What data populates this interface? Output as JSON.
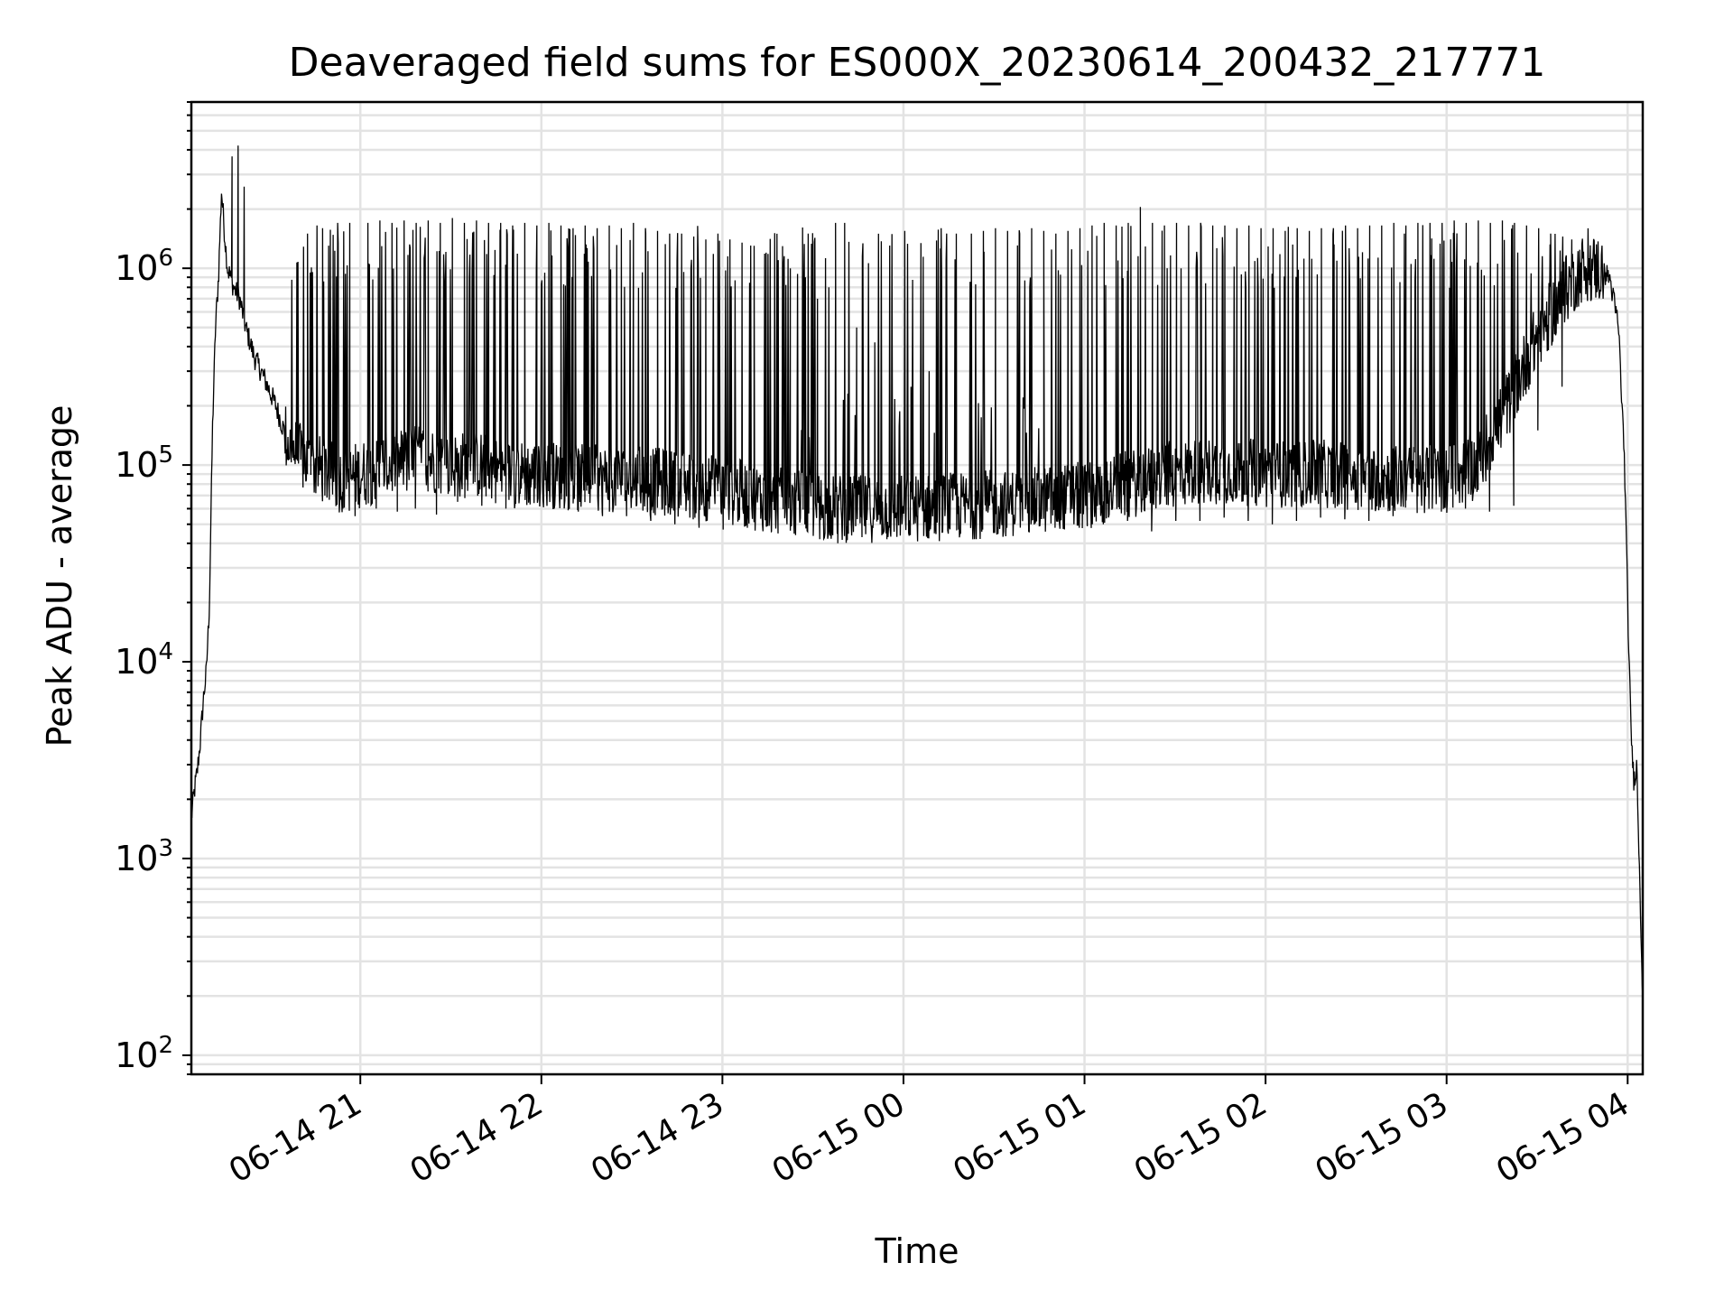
{
  "chart_data": {
    "type": "line",
    "title": "Deaveraged field sums for ES000X_20230614_200432_217771",
    "xlabel": "Time",
    "ylabel": "Peak ADU - average",
    "xlim": [
      "2023-06-14 20:04",
      "2023-06-15 04:05"
    ],
    "ylim": [
      80,
      7000000
    ],
    "yscale": "log",
    "grid": true,
    "x_ticks": [
      "06-14 21",
      "06-14 22",
      "06-14 23",
      "06-15 00",
      "06-15 01",
      "06-15 02",
      "06-15 03",
      "06-15 04"
    ],
    "y_ticks": [
      {
        "value": 100,
        "base": "10",
        "exp": "2"
      },
      {
        "value": 1000,
        "base": "10",
        "exp": "3"
      },
      {
        "value": 10000,
        "base": "10",
        "exp": "4"
      },
      {
        "value": 100000,
        "base": "10",
        "exp": "5"
      },
      {
        "value": 1000000,
        "base": "10",
        "exp": "6"
      }
    ],
    "line_color": "#000000",
    "series": [
      {
        "x": [
          "2023-06-14 20:04",
          "2023-06-14 20:05",
          "2023-06-14 20:06",
          "2023-06-14 20:07",
          "2023-06-14 20:08",
          "2023-06-14 20:09",
          "2023-06-14 20:10",
          "2023-06-14 20:11",
          "2023-06-14 20:12",
          "2023-06-14 20:13",
          "2023-06-14 20:14",
          "2023-06-14 20:15",
          "2023-06-14 20:16",
          "2023-06-14 20:17",
          "2023-06-14 20:18",
          "2023-06-14 20:20",
          "2023-06-14 20:22",
          "2023-06-14 20:25",
          "2023-06-14 20:28",
          "2023-06-14 20:32",
          "2023-06-14 20:36",
          "2023-06-14 20:40",
          "2023-06-14 20:44",
          "2023-06-14 20:47",
          "2023-06-14 20:50",
          "2023-06-14 20:53",
          "2023-06-14 20:56",
          "2023-06-14 21:00",
          "2023-06-14 21:10",
          "2023-06-14 21:20",
          "2023-06-14 21:30",
          "2023-06-14 21:40",
          "2023-06-14 21:50",
          "2023-06-14 22:00",
          "2023-06-14 22:15",
          "2023-06-14 22:30",
          "2023-06-14 22:45",
          "2023-06-14 23:00",
          "2023-06-14 23:20",
          "2023-06-14 23:40",
          "2023-06-15 00:00",
          "2023-06-15 00:20",
          "2023-06-15 00:40",
          "2023-06-15 01:00",
          "2023-06-15 01:15",
          "2023-06-15 01:30",
          "2023-06-15 01:45",
          "2023-06-15 02:00",
          "2023-06-15 02:20",
          "2023-06-15 02:40",
          "2023-06-15 03:00",
          "2023-06-15 03:10",
          "2023-06-15 03:20",
          "2023-06-15 03:30",
          "2023-06-15 03:40",
          "2023-06-15 03:45",
          "2023-06-15 03:50",
          "2023-06-15 03:54",
          "2023-06-15 03:57",
          "2023-06-15 03:59",
          "2023-06-15 04:00",
          "2023-06-15 04:01",
          "2023-06-15 04:02",
          "2023-06-15 04:03",
          "2023-06-15 04:04",
          "2023-06-15 04:05"
        ],
        "y": [
          1600,
          2200,
          2800,
          4000,
          6500,
          9000,
          20000,
          150000,
          500000,
          900000,
          2500000,
          1500000,
          1000000,
          900000,
          800000,
          700000,
          500000,
          350000,
          280000,
          200000,
          130000,
          110000,
          100000,
          95000,
          90000,
          85000,
          85000,
          90000,
          100000,
          110000,
          100000,
          100000,
          90000,
          90000,
          85000,
          85000,
          80000,
          75000,
          65000,
          60000,
          60000,
          62000,
          65000,
          70000,
          80000,
          90000,
          95000,
          90000,
          90000,
          85000,
          85000,
          100000,
          200000,
          450000,
          800000,
          1000000,
          1000000,
          900000,
          500000,
          100000,
          20000,
          5000,
          2500,
          3000,
          800,
          200
        ],
        "spikes": [
          [
            "2023-06-14 20:17",
            3700000
          ],
          [
            "2023-06-14 20:19",
            4200000
          ],
          [
            "2023-06-14 20:21",
            2600000
          ],
          [
            "2023-06-14 20:42",
            1500000
          ],
          [
            "2023-06-14 20:47",
            1600000
          ],
          [
            "2023-06-14 20:52",
            1700000
          ],
          [
            "2023-06-14 20:56",
            1700000
          ],
          [
            "2023-06-14 21:02",
            1700000
          ],
          [
            "2023-06-14 21:06",
            1750000
          ],
          [
            "2023-06-14 21:10",
            1700000
          ],
          [
            "2023-06-14 21:14",
            1750000
          ],
          [
            "2023-06-14 21:18",
            1700000
          ],
          [
            "2023-06-14 21:22",
            1750000
          ],
          [
            "2023-06-14 21:26",
            1700000
          ],
          [
            "2023-06-14 21:30",
            1800000
          ],
          [
            "2023-06-14 21:34",
            1700000
          ],
          [
            "2023-06-14 21:38",
            1750000
          ],
          [
            "2023-06-14 21:42",
            1700000
          ],
          [
            "2023-06-14 21:46",
            1700000
          ],
          [
            "2023-06-14 21:50",
            1650000
          ],
          [
            "2023-06-14 21:54",
            1700000
          ],
          [
            "2023-06-14 21:58",
            1650000
          ],
          [
            "2023-06-14 22:02",
            1700000
          ],
          [
            "2023-06-14 22:06",
            1650000
          ],
          [
            "2023-06-14 22:10",
            1600000
          ],
          [
            "2023-06-14 22:14",
            1650000
          ],
          [
            "2023-06-14 22:18",
            1600000
          ],
          [
            "2023-06-14 22:22",
            1650000
          ],
          [
            "2023-06-14 22:26",
            1600000
          ],
          [
            "2023-06-14 22:30",
            1700000
          ],
          [
            "2023-06-14 22:34",
            1600000
          ],
          [
            "2023-06-14 22:38",
            1550000
          ],
          [
            "2023-06-14 22:42",
            1500000
          ],
          [
            "2023-06-14 22:46",
            1500000
          ],
          [
            "2023-06-14 22:50",
            1450000
          ],
          [
            "2023-06-14 22:54",
            1400000
          ],
          [
            "2023-06-14 22:58",
            1500000
          ],
          [
            "2023-06-14 23:02",
            1400000
          ],
          [
            "2023-06-14 23:06",
            1350000
          ],
          [
            "2023-06-14 23:10",
            1300000
          ],
          [
            "2023-06-14 23:14",
            1200000
          ],
          [
            "2023-06-14 23:18",
            1100000
          ],
          [
            "2023-06-14 23:22",
            1000000
          ],
          [
            "2023-06-14 23:27",
            900000
          ],
          [
            "2023-06-14 23:31",
            700000
          ],
          [
            "2023-06-14 23:37",
            1700000
          ],
          [
            "2023-06-14 23:40",
            1700000
          ],
          [
            "2023-06-14 23:44",
            500000
          ],
          [
            "2023-06-14 23:50",
            420000
          ],
          [
            "2023-06-14 23:55",
            300000
          ],
          [
            "2023-06-15 00:02",
            250000
          ],
          [
            "2023-06-15 00:08",
            300000
          ],
          [
            "2023-06-15 00:12",
            1600000
          ],
          [
            "2023-06-15 00:17",
            1500000
          ],
          [
            "2023-06-15 00:22",
            1500000
          ],
          [
            "2023-06-15 00:26",
            1550000
          ],
          [
            "2023-06-15 00:30",
            1600000
          ],
          [
            "2023-06-15 00:34",
            1550000
          ],
          [
            "2023-06-15 00:38",
            1500000
          ],
          [
            "2023-06-15 00:42",
            1600000
          ],
          [
            "2023-06-15 00:46",
            1550000
          ],
          [
            "2023-06-15 00:50",
            1500000
          ],
          [
            "2023-06-15 00:54",
            1550000
          ],
          [
            "2023-06-15 00:58",
            1600000
          ],
          [
            "2023-06-15 01:02",
            1650000
          ],
          [
            "2023-06-15 01:06",
            1700000
          ],
          [
            "2023-06-15 01:10",
            1650000
          ],
          [
            "2023-06-15 01:14",
            1700000
          ],
          [
            "2023-06-15 01:18",
            2050000
          ],
          [
            "2023-06-15 01:22",
            1700000
          ],
          [
            "2023-06-15 01:26",
            1650000
          ],
          [
            "2023-06-15 01:30",
            1700000
          ],
          [
            "2023-06-15 01:34",
            1650000
          ],
          [
            "2023-06-15 01:38",
            1700000
          ],
          [
            "2023-06-15 01:42",
            1650000
          ],
          [
            "2023-06-15 01:46",
            1650000
          ],
          [
            "2023-06-15 01:50",
            1600000
          ],
          [
            "2023-06-15 01:54",
            1650000
          ],
          [
            "2023-06-15 01:58",
            1600000
          ],
          [
            "2023-06-15 02:02",
            1600000
          ],
          [
            "2023-06-15 02:06",
            1550000
          ],
          [
            "2023-06-15 02:10",
            1600000
          ],
          [
            "2023-06-15 02:14",
            1550000
          ],
          [
            "2023-06-15 02:18",
            1600000
          ],
          [
            "2023-06-15 02:22",
            1600000
          ],
          [
            "2023-06-15 02:26",
            1650000
          ],
          [
            "2023-06-15 02:30",
            1600000
          ],
          [
            "2023-06-15 02:34",
            1650000
          ],
          [
            "2023-06-15 02:38",
            1650000
          ],
          [
            "2023-06-15 02:42",
            1700000
          ],
          [
            "2023-06-15 02:46",
            1650000
          ],
          [
            "2023-06-15 02:50",
            1700000
          ],
          [
            "2023-06-15 02:54",
            1700000
          ],
          [
            "2023-06-15 02:58",
            1700000
          ],
          [
            "2023-06-15 03:02",
            1750000
          ],
          [
            "2023-06-15 03:06",
            1700000
          ],
          [
            "2023-06-15 03:10",
            1750000
          ],
          [
            "2023-06-15 03:14",
            1700000
          ],
          [
            "2023-06-15 03:18",
            1750000
          ],
          [
            "2023-06-15 03:22",
            1700000
          ],
          [
            "2023-06-15 03:26",
            1650000
          ],
          [
            "2023-06-15 03:30",
            1600000
          ],
          [
            "2023-06-15 03:34",
            1500000
          ],
          [
            "2023-06-15 03:38",
            1450000
          ],
          [
            "2023-06-15 03:41",
            1400000
          ]
        ],
        "dips": [
          [
            "2023-06-14 20:33",
            180000
          ],
          [
            "2023-06-14 20:40",
            140000
          ],
          [
            "2023-06-14 20:48",
            70000
          ],
          [
            "2023-06-14 20:54",
            60000
          ],
          [
            "2023-06-14 20:58",
            55000
          ],
          [
            "2023-06-14 21:05",
            60000
          ],
          [
            "2023-06-14 21:12",
            58000
          ],
          [
            "2023-06-14 21:18",
            60000
          ],
          [
            "2023-06-14 21:25",
            56000
          ],
          [
            "2023-06-14 21:32",
            65000
          ],
          [
            "2023-06-14 21:40",
            62000
          ],
          [
            "2023-06-14 21:48",
            60000
          ],
          [
            "2023-06-14 21:56",
            63000
          ],
          [
            "2023-06-14 22:04",
            60000
          ],
          [
            "2023-06-14 22:12",
            58000
          ],
          [
            "2023-06-14 22:20",
            55000
          ],
          [
            "2023-06-14 22:28",
            55000
          ],
          [
            "2023-06-14 22:36",
            52000
          ],
          [
            "2023-06-14 22:44",
            50000
          ],
          [
            "2023-06-14 22:52",
            48000
          ],
          [
            "2023-06-14 23:00",
            47000
          ],
          [
            "2023-06-14 23:08",
            48000
          ],
          [
            "2023-06-14 23:16",
            46000
          ],
          [
            "2023-06-14 23:24",
            44000
          ],
          [
            "2023-06-14 23:32",
            42000
          ],
          [
            "2023-06-14 23:38",
            40000
          ],
          [
            "2023-06-14 23:46",
            43000
          ],
          [
            "2023-06-14 23:54",
            45000
          ],
          [
            "2023-06-15 00:02",
            44000
          ],
          [
            "2023-06-15 00:10",
            45000
          ],
          [
            "2023-06-15 00:18",
            47000
          ],
          [
            "2023-06-15 00:26",
            47000
          ],
          [
            "2023-06-15 00:34",
            48000
          ],
          [
            "2023-06-15 00:42",
            50000
          ],
          [
            "2023-06-15 00:50",
            48000
          ],
          [
            "2023-06-15 00:58",
            48000
          ],
          [
            "2023-06-15 01:06",
            50000
          ],
          [
            "2023-06-15 01:14",
            52000
          ],
          [
            "2023-06-15 01:22",
            46000
          ],
          [
            "2023-06-15 01:30",
            52000
          ],
          [
            "2023-06-15 01:38",
            52000
          ],
          [
            "2023-06-15 01:46",
            54000
          ],
          [
            "2023-06-15 01:54",
            52000
          ],
          [
            "2023-06-15 02:02",
            50000
          ],
          [
            "2023-06-15 02:10",
            52000
          ],
          [
            "2023-06-15 02:18",
            54000
          ],
          [
            "2023-06-15 02:26",
            53000
          ],
          [
            "2023-06-15 02:34",
            52000
          ],
          [
            "2023-06-15 02:42",
            55000
          ],
          [
            "2023-06-15 02:50",
            57000
          ],
          [
            "2023-06-15 02:58",
            58000
          ],
          [
            "2023-06-15 03:06",
            60000
          ],
          [
            "2023-06-15 03:14",
            58000
          ],
          [
            "2023-06-15 03:22",
            62000
          ],
          [
            "2023-06-15 03:30",
            150000
          ],
          [
            "2023-06-15 03:38",
            250000
          ]
        ]
      }
    ]
  }
}
